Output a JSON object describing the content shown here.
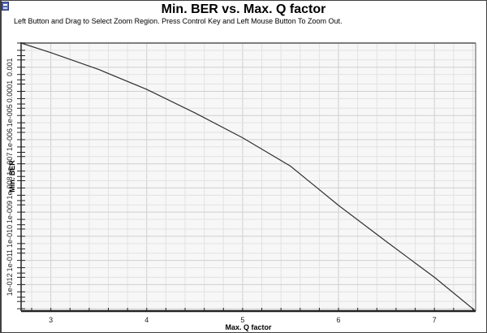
{
  "window": {
    "icon": "chart-window-icon",
    "title": "Min. BER vs. Max. Q factor",
    "hint": "Left Button and Drag to Select Zoom Region. Press Control Key and Left Mouse Button To Zoom Out."
  },
  "chart_data": {
    "type": "line",
    "title": "Min. BER vs. Max. Q factor",
    "xlabel": "Max. Q factor",
    "ylabel": "Min. BER",
    "xscale": "linear",
    "yscale": "log",
    "xlim": [
      2.69,
      7.43
    ],
    "ylim": [
      8e-14,
      0.01
    ],
    "grid": true,
    "legend": null,
    "x_ticks": [
      "3",
      "4",
      "5",
      "6",
      "7"
    ],
    "y_ticks": [
      "0.001",
      "0.0001",
      "1e-005",
      "1e-006",
      "1e-007",
      "1e-008",
      "1e-009",
      "1e-010",
      "1e-011",
      "1e-012"
    ],
    "series": [
      {
        "name": "Min. BER",
        "color": "#303030",
        "x": [
          2.69,
          3.0,
          3.5,
          4.0,
          4.5,
          5.0,
          5.5,
          6.0,
          6.5,
          7.0,
          7.43
        ],
        "y": [
          0.01,
          0.004,
          0.0008,
          0.00012,
          1.3e-05,
          1.2e-06,
          8e-08,
          1.9e-09,
          6e-11,
          2e-12,
          8e-14
        ]
      }
    ]
  }
}
